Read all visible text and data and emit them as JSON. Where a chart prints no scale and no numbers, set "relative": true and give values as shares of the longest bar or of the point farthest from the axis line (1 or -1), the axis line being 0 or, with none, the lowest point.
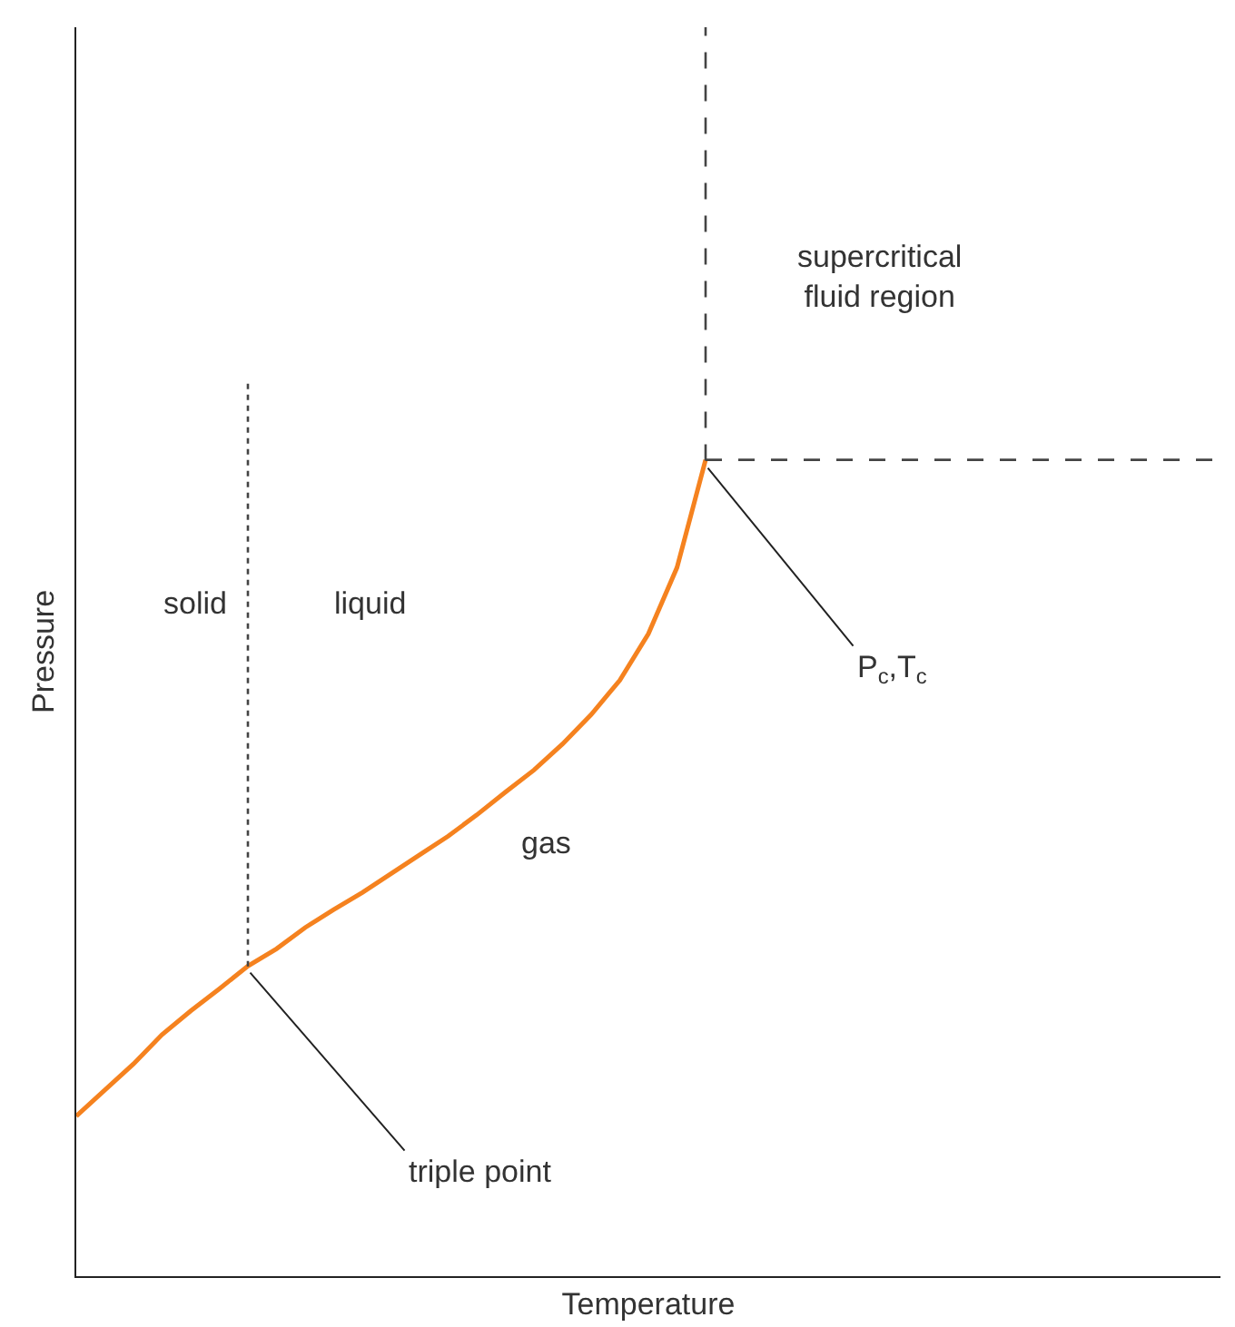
{
  "chart_data": {
    "type": "line",
    "relative": true,
    "xlabel": "Temperature",
    "ylabel": "Pressure",
    "grid": false,
    "marker": "none",
    "categories": [
      null,
      null,
      null,
      null,
      null,
      null,
      null,
      null,
      null,
      null,
      null,
      null,
      null,
      null,
      null,
      null,
      null,
      null,
      null,
      null,
      null,
      null,
      null,
      null,
      null,
      null,
      null,
      null,
      null,
      null,
      null,
      null,
      null,
      null,
      null,
      null,
      null,
      null,
      null,
      null,
      null
    ],
    "series": [
      {
        "color": "#f5821f",
        "line_style": "solid",
        "values": [
          0.196,
          0.228,
          0.26,
          0.296,
          0.325,
          0.352,
          0.38,
          0.401,
          0.427,
          0.449,
          0.47,
          0.493,
          0.516,
          0.539,
          0.565,
          0.593,
          0.62,
          0.652,
          0.688,
          0.73,
          0.787,
          0.868,
          1,
          null,
          null,
          null,
          null,
          null,
          null,
          null,
          null,
          null,
          null,
          null,
          null,
          null,
          null,
          null,
          null,
          null,
          null
        ]
      },
      {
        "color": "#444444",
        "line_style": "dashed",
        "values": [
          null,
          null,
          null,
          null,
          null,
          null,
          null,
          null,
          null,
          null,
          null,
          null,
          null,
          null,
          null,
          null,
          null,
          null,
          null,
          null,
          null,
          null,
          1,
          1,
          1,
          1,
          1,
          1,
          1,
          1,
          1,
          1,
          1,
          1,
          1,
          1,
          1,
          1,
          1,
          1,
          1
        ]
      }
    ],
    "annotations": [
      "solid",
      "liquid",
      "gas",
      "supercritical\nfluid region",
      "triple point",
      "P$_{c}$,T$_{c}$"
    ]
  }
}
